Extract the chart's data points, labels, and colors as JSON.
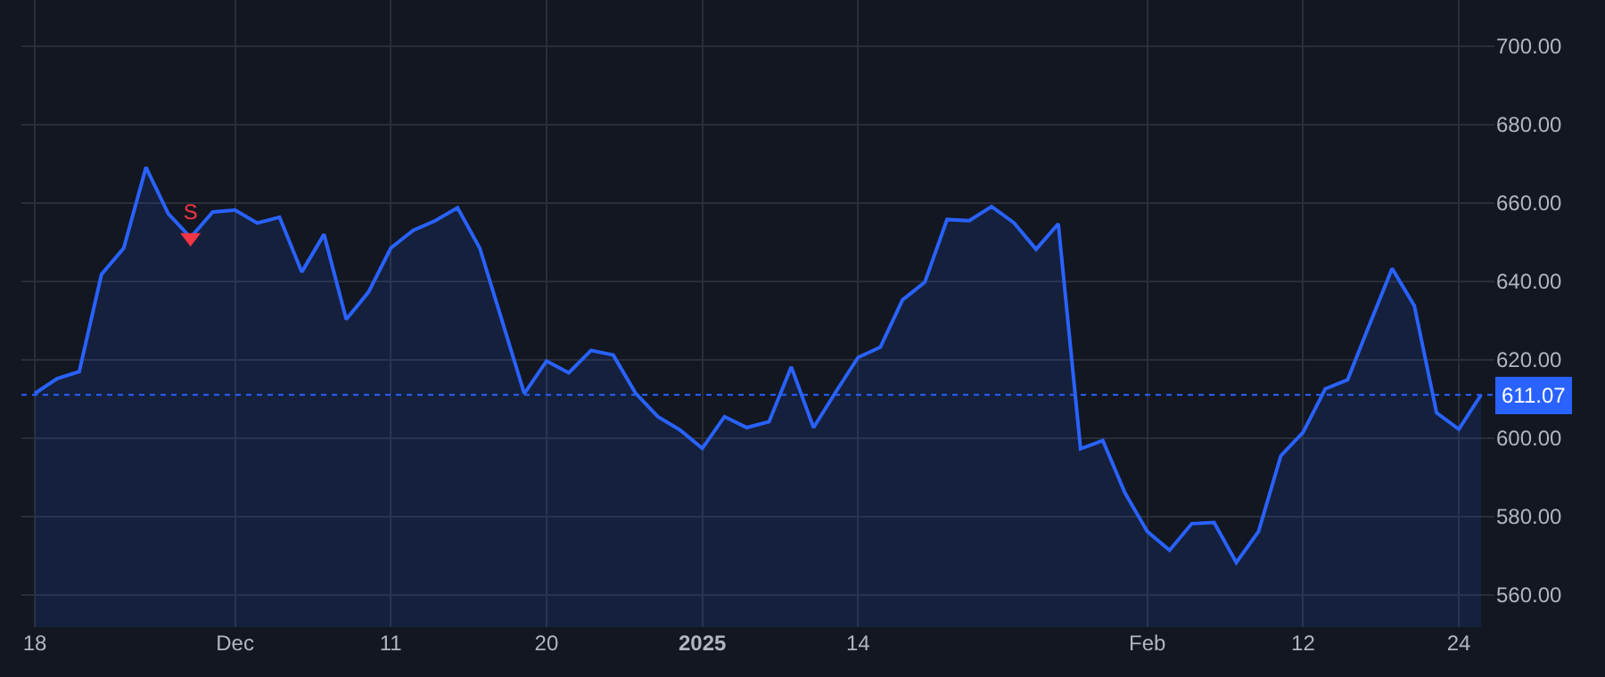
{
  "chart_data": {
    "type": "area",
    "categories": [
      "18",
      null,
      null,
      null,
      null,
      null,
      null,
      null,
      null,
      "Dec",
      null,
      null,
      null,
      null,
      null,
      null,
      "11",
      null,
      null,
      null,
      null,
      null,
      null,
      "20",
      null,
      null,
      null,
      null,
      null,
      null,
      "2025",
      null,
      null,
      null,
      null,
      null,
      null,
      "14",
      null,
      null,
      null,
      null,
      null,
      null,
      null,
      null,
      null,
      null,
      null,
      null,
      "Feb",
      null,
      null,
      null,
      null,
      null,
      null,
      "12",
      null,
      null,
      null,
      null,
      null,
      null,
      "24",
      null
    ],
    "series": [
      {
        "color": "#2962ff",
        "values": [
          611.4,
          615.2,
          617.0,
          641.8,
          648.5,
          669.1,
          657.3,
          651.2,
          657.7,
          658.2,
          654.9,
          656.4,
          642.4,
          652.0,
          630.3,
          637.3,
          648.5,
          653.0,
          655.5,
          658.8,
          648.5,
          630.0,
          611.4,
          619.7,
          616.7,
          622.4,
          621.2,
          611.5,
          605.5,
          602.1,
          597.4,
          605.5,
          602.7,
          604.2,
          618.2,
          602.7,
          611.8,
          620.6,
          623.2,
          635.3,
          639.8,
          655.8,
          655.5,
          659.1,
          655.0,
          648.2,
          654.7,
          597.3,
          599.4,
          586.0,
          576.2,
          571.4,
          578.2,
          578.5,
          568.3,
          576.2,
          595.5,
          601.5,
          612.6,
          614.9,
          629.2,
          643.3,
          633.8,
          606.5,
          602.3,
          611.07
        ]
      },
      {
        "type": "scatter",
        "color": "#f23645",
        "marker": "triangle",
        "values": [
          null,
          null,
          null,
          null,
          null,
          null,
          null,
          651.2,
          null,
          null,
          null,
          null,
          null,
          null,
          null,
          null,
          null,
          null,
          null,
          null,
          null,
          null,
          null,
          null,
          null,
          null,
          null,
          null,
          null,
          null,
          null,
          null,
          null,
          null,
          null,
          null,
          null,
          null,
          null,
          null,
          null,
          null,
          null,
          null,
          null,
          null,
          null,
          null,
          null,
          null,
          null,
          null,
          null,
          null,
          null,
          null,
          null,
          null,
          null,
          null,
          null,
          null,
          null,
          null,
          null,
          null
        ],
        "value_labels": [
          null,
          null,
          null,
          null,
          null,
          null,
          null,
          "S",
          null,
          null,
          null,
          null,
          null,
          null,
          null,
          null,
          null,
          null,
          null,
          null,
          null,
          null,
          null,
          null,
          null,
          null,
          null,
          null,
          null,
          null,
          null,
          null,
          null,
          null,
          null,
          null,
          null,
          null,
          null,
          null,
          null,
          null,
          null,
          null,
          null,
          null,
          null,
          null,
          null,
          null,
          null,
          null,
          null,
          null,
          null,
          null,
          null,
          null,
          null,
          null,
          null,
          null,
          null,
          null,
          null,
          null
        ]
      }
    ],
    "ylim": [
      551.8,
      711.8
    ],
    "yticks": [
      {
        "value": 560,
        "label": "560.00"
      },
      {
        "value": 580,
        "label": "580.00"
      },
      {
        "value": 600,
        "label": "600.00"
      },
      {
        "value": 620,
        "label": "620.00"
      },
      {
        "value": 640,
        "label": "640.00"
      },
      {
        "value": 660,
        "label": "660.00"
      },
      {
        "value": 680,
        "label": "680.00"
      },
      {
        "value": 700,
        "label": "700.00"
      }
    ],
    "ref_lines": [
      {
        "axis": "y",
        "value": 611.07,
        "label": "611.07",
        "color": "#2962ff",
        "line_style": "dotted"
      }
    ],
    "grid": true,
    "legend": false
  }
}
